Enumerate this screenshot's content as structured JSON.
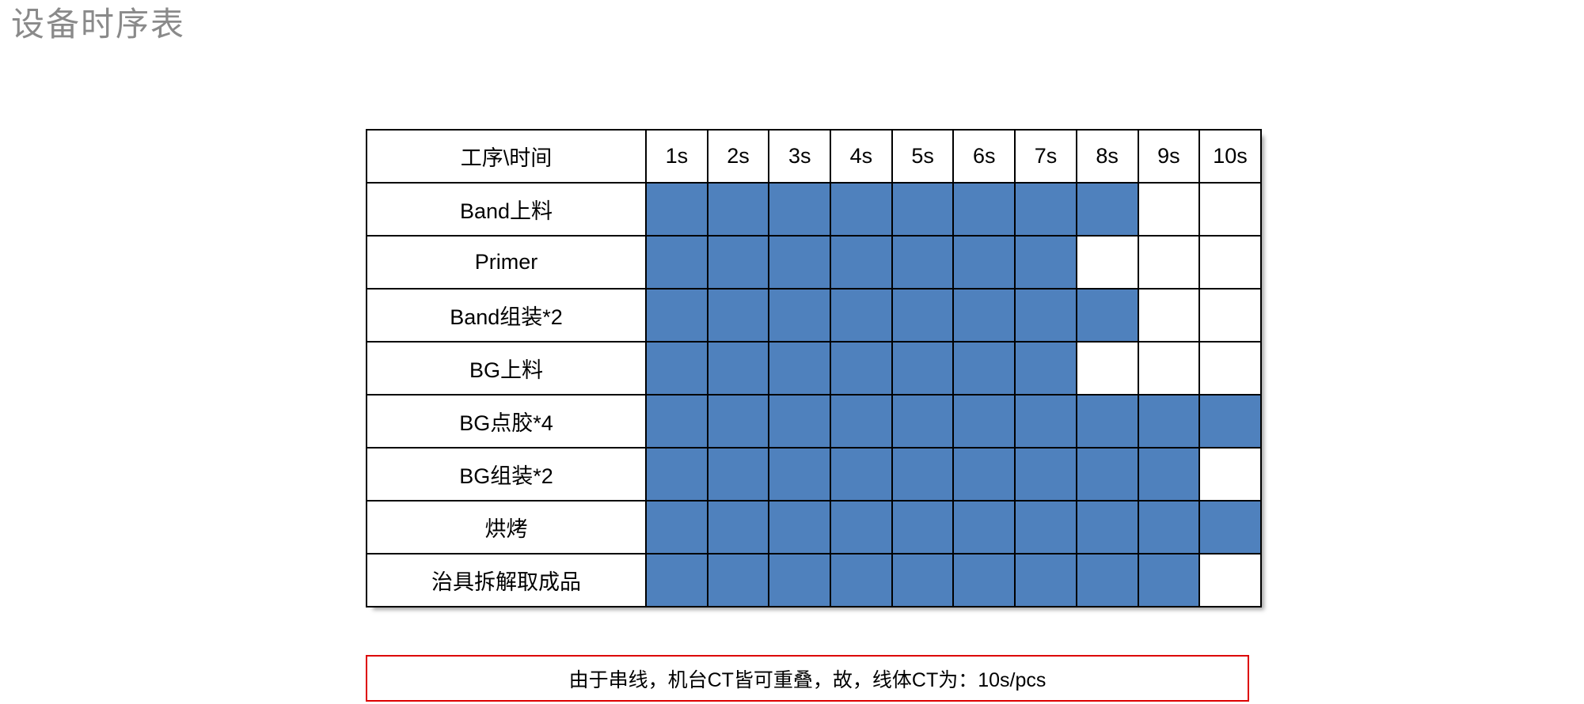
{
  "page": {
    "title": "设备时序表"
  },
  "chart_data": {
    "type": "table",
    "subtype": "gantt-timing-chart",
    "title": "设备时序表",
    "corner_label": "工序\\时间",
    "time_unit": "s",
    "time_columns": [
      "1s",
      "2s",
      "3s",
      "4s",
      "5s",
      "6s",
      "7s",
      "8s",
      "9s",
      "10s"
    ],
    "x_range": [
      1,
      10
    ],
    "grid": true,
    "rows": [
      {
        "label": "Band上料",
        "start": 1,
        "end": 8,
        "duration_s": 8
      },
      {
        "label": "Primer",
        "start": 1,
        "end": 7,
        "duration_s": 7
      },
      {
        "label": "Band组装*2",
        "start": 1,
        "end": 8,
        "duration_s": 8
      },
      {
        "label": "BG上料",
        "start": 1,
        "end": 7,
        "duration_s": 7
      },
      {
        "label": "BG点胶*4",
        "start": 1,
        "end": 10,
        "duration_s": 10
      },
      {
        "label": "BG组装*2",
        "start": 1,
        "end": 9,
        "duration_s": 9
      },
      {
        "label": "烘烤",
        "start": 1,
        "end": 10,
        "duration_s": 10
      },
      {
        "label": "治具拆解取成品",
        "start": 1,
        "end": 9,
        "duration_s": 9
      }
    ],
    "fill_color": "#4F81BD",
    "grid_color": "#000000"
  },
  "note": {
    "text": "由于串线，机台CT皆可重叠，故，线体CT为：10s/pcs",
    "border_color": "#DD0000",
    "line_ct": "10s/pcs"
  }
}
